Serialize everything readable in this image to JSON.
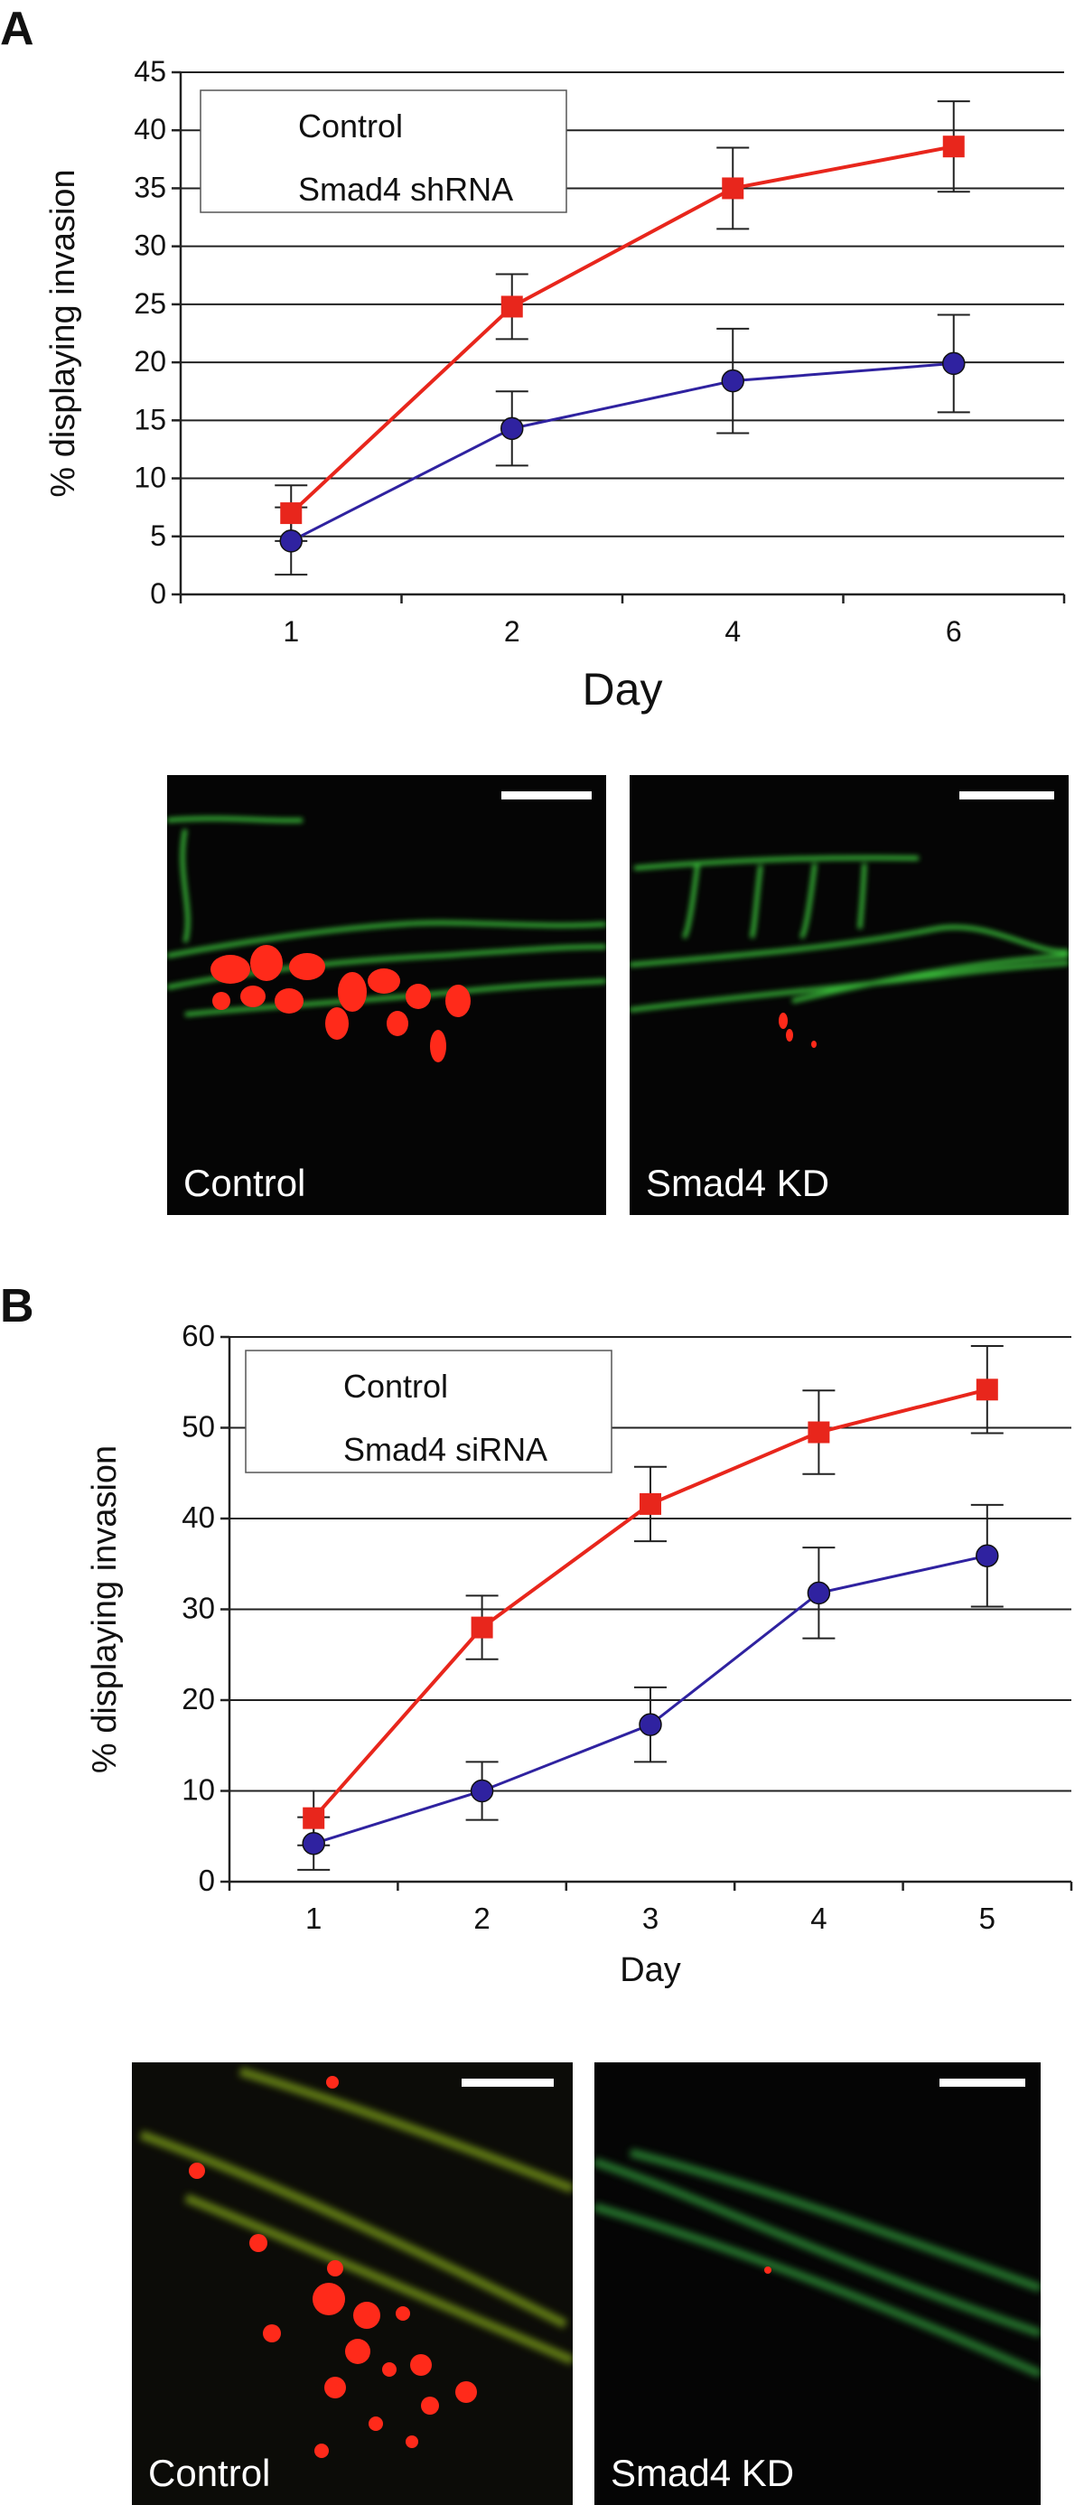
{
  "panels": [
    {
      "letter": "A"
    },
    {
      "letter": "B"
    }
  ],
  "chart_data": [
    {
      "type": "line",
      "panel": "A",
      "categories": [
        "1",
        "2",
        "4",
        "6"
      ],
      "xlabel": "Day",
      "ylabel": "% displaying invasion",
      "ylim": [
        0,
        45
      ],
      "yticks": [
        0,
        5,
        10,
        15,
        20,
        25,
        30,
        35,
        40,
        45
      ],
      "grid": true,
      "legend_placement": "top-left",
      "series": [
        {
          "name": "Control",
          "color": "#2f22a0",
          "marker": "circle",
          "values": [
            4.6,
            14.3,
            18.4,
            19.9
          ],
          "errors": [
            2.9,
            3.2,
            4.5,
            4.2
          ]
        },
        {
          "name": "Smad4 shRNA",
          "color": "#e8261c",
          "marker": "square",
          "values": [
            7.0,
            24.8,
            35.0,
            38.6
          ],
          "errors": [
            2.4,
            2.8,
            3.5,
            3.9
          ]
        }
      ]
    },
    {
      "type": "line",
      "panel": "B",
      "categories": [
        "1",
        "2",
        "3",
        "4",
        "5"
      ],
      "xlabel": "Day",
      "ylabel": "% displaying invasion",
      "ylim": [
        0,
        60
      ],
      "yticks": [
        0,
        10,
        20,
        30,
        40,
        50,
        60
      ],
      "grid": true,
      "legend_placement": "top-left",
      "series": [
        {
          "name": "Control",
          "color": "#2f22a0",
          "marker": "circle",
          "values": [
            4.2,
            10.0,
            17.3,
            31.8,
            35.9
          ],
          "errors": [
            2.9,
            3.2,
            4.1,
            5.0,
            5.6
          ]
        },
        {
          "name": "Smad4 siRNA",
          "color": "#e8261c",
          "marker": "square",
          "values": [
            7.0,
            28.0,
            41.6,
            49.5,
            54.2
          ],
          "errors": [
            3.0,
            3.5,
            4.1,
            4.6,
            4.8
          ]
        }
      ]
    }
  ],
  "images": {
    "A": [
      {
        "caption": "Control",
        "style": "control-a"
      },
      {
        "caption": "Smad4 KD",
        "style": "kd-a"
      }
    ],
    "B": [
      {
        "caption": "Control",
        "style": "control-b"
      },
      {
        "caption": "Smad4 KD",
        "style": "kd-b"
      }
    ]
  }
}
